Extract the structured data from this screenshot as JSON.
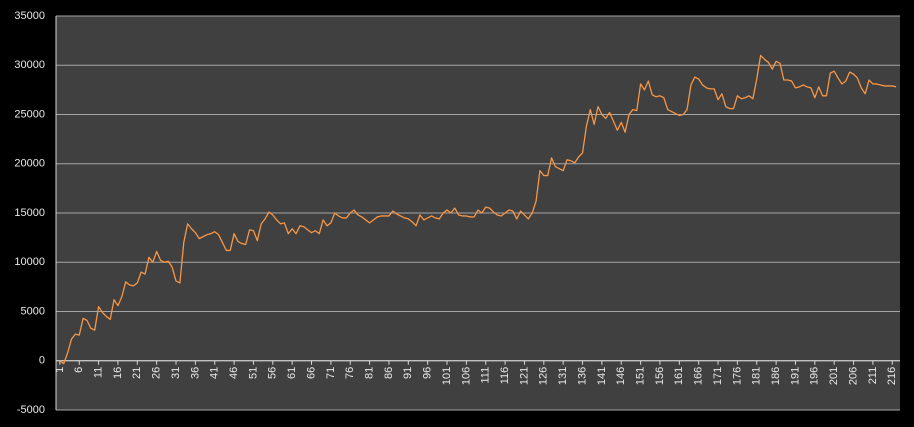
{
  "chart_data": {
    "type": "line",
    "color": "#f79646",
    "grid": true,
    "x": [
      1,
      2,
      3,
      4,
      5,
      6,
      7,
      8,
      9,
      10,
      11,
      12,
      13,
      14,
      15,
      16,
      17,
      18,
      19,
      20,
      21,
      22,
      23,
      24,
      25,
      26,
      27,
      28,
      29,
      30,
      31,
      32,
      33,
      34,
      35,
      36,
      37,
      38,
      39,
      40,
      41,
      42,
      43,
      44,
      45,
      46,
      47,
      48,
      49,
      50,
      51,
      52,
      53,
      54,
      55,
      56,
      57,
      58,
      59,
      60,
      61,
      62,
      63,
      64,
      65,
      66,
      67,
      68,
      69,
      70,
      71,
      72,
      73,
      74,
      75,
      76,
      77,
      78,
      79,
      80,
      81,
      82,
      83,
      84,
      85,
      86,
      87,
      88,
      89,
      90,
      91,
      92,
      93,
      94,
      95,
      96,
      97,
      98,
      99,
      100,
      101,
      102,
      103,
      104,
      105,
      106,
      107,
      108,
      109,
      110,
      111,
      112,
      113,
      114,
      115,
      116,
      117,
      118,
      119,
      120,
      121,
      122,
      123,
      124,
      125,
      126,
      127,
      128,
      129,
      130,
      131,
      132,
      133,
      134,
      135,
      136,
      137,
      138,
      139,
      140,
      141,
      142,
      143,
      144,
      145,
      146,
      147,
      148,
      149,
      150,
      151,
      152,
      153,
      154,
      155,
      156,
      157,
      158,
      159,
      160,
      161,
      162,
      163,
      164,
      165,
      166,
      167,
      168,
      169,
      170,
      171,
      172,
      173,
      174,
      175,
      176,
      177,
      178,
      179,
      180,
      181,
      182,
      183,
      184,
      185,
      186,
      187,
      188,
      189,
      190,
      191,
      192,
      193,
      194,
      195,
      196,
      197,
      198,
      199,
      200,
      201,
      202,
      203,
      204,
      205,
      206,
      207,
      208,
      209,
      210,
      211,
      212,
      213,
      214,
      215,
      216,
      217
    ],
    "values": [
      0,
      -300,
      800,
      2200,
      2700,
      2600,
      4300,
      4100,
      3300,
      3100,
      5500,
      4900,
      4500,
      4200,
      6200,
      5600,
      6500,
      8000,
      7700,
      7600,
      7900,
      9000,
      8800,
      10500,
      10000,
      11100,
      10200,
      10000,
      10100,
      9500,
      8100,
      7900,
      12000,
      13900,
      13400,
      13000,
      12400,
      12600,
      12800,
      12900,
      13100,
      12800,
      12000,
      11200,
      11200,
      12900,
      12100,
      11900,
      11800,
      13300,
      13200,
      12200,
      13900,
      14400,
      15100,
      14800,
      14300,
      13900,
      14000,
      12900,
      13400,
      12900,
      13700,
      13600,
      13300,
      13000,
      13200,
      12900,
      14300,
      13700,
      14000,
      15000,
      14700,
      14500,
      14500,
      15000,
      15300,
      14800,
      14600,
      14300,
      14000,
      14300,
      14600,
      14700,
      14700,
      14700,
      15200,
      14900,
      14700,
      14500,
      14400,
      14100,
      13700,
      14800,
      14300,
      14500,
      14700,
      14500,
      14400,
      15000,
      15300,
      15000,
      15500,
      14800,
      14700,
      14700,
      14600,
      14600,
      15300,
      15000,
      15600,
      15500,
      15100,
      14800,
      14700,
      15000,
      15300,
      15200,
      14400,
      15200,
      14800,
      14400,
      15000,
      16200,
      19300,
      18800,
      18800,
      20600,
      19700,
      19500,
      19300,
      20400,
      20300,
      20100,
      20700,
      21100,
      23800,
      25500,
      24000,
      25800,
      25000,
      24600,
      25200,
      24300,
      23400,
      24200,
      23200,
      25000,
      25500,
      25400,
      28100,
      27500,
      28400,
      27000,
      26800,
      26900,
      26700,
      25500,
      25300,
      25100,
      24900,
      25000,
      25500,
      28000,
      28800,
      28600,
      28000,
      27700,
      27600,
      27600,
      26500,
      27100,
      25800,
      25600,
      25600,
      26900,
      26600,
      26700,
      26900,
      26600,
      28600,
      31000,
      30600,
      30300,
      29600,
      30400,
      30200,
      28500,
      28500,
      28400,
      27700,
      27800,
      28000,
      27800,
      27700,
      26700,
      27800,
      26900,
      26900,
      29200,
      29400,
      28700,
      28100,
      28400,
      29300,
      29100,
      28700,
      27700,
      27100,
      28500,
      28100,
      28100,
      28000,
      27900,
      27900,
      27900,
      27800
    ],
    "xlim": [
      0,
      218
    ],
    "xticks": [
      1,
      6,
      11,
      16,
      21,
      26,
      31,
      36,
      41,
      46,
      51,
      56,
      61,
      66,
      71,
      76,
      81,
      86,
      91,
      96,
      101,
      106,
      111,
      116,
      121,
      126,
      131,
      136,
      141,
      146,
      151,
      156,
      161,
      166,
      171,
      176,
      181,
      186,
      191,
      196,
      201,
      206,
      211,
      216
    ],
    "ylim": [
      -5000,
      35000
    ],
    "yticks": [
      -5000,
      0,
      5000,
      10000,
      15000,
      20000,
      25000,
      30000,
      35000
    ]
  }
}
